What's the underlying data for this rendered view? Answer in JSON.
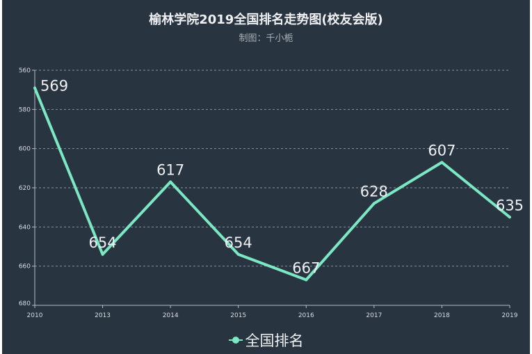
{
  "chart_data": {
    "type": "line",
    "title": "榆林学院2019全国排名走势图(校友会版)",
    "subtitle": "制图：千小栀",
    "categories": [
      "2010",
      "2013",
      "2014",
      "2015",
      "2016",
      "2017",
      "2018",
      "2019"
    ],
    "series": [
      {
        "name": "全国排名",
        "values": [
          569,
          654,
          617,
          654,
          667,
          628,
          607,
          635
        ]
      }
    ],
    "ylim": [
      560,
      680
    ],
    "y_inverted": true,
    "yticks": [
      560,
      580,
      600,
      620,
      640,
      660,
      680
    ],
    "grid": true,
    "legend": "bottom",
    "colors": {
      "line": "#7be8c3",
      "background": "#283440",
      "text": "#eef0f2"
    }
  }
}
